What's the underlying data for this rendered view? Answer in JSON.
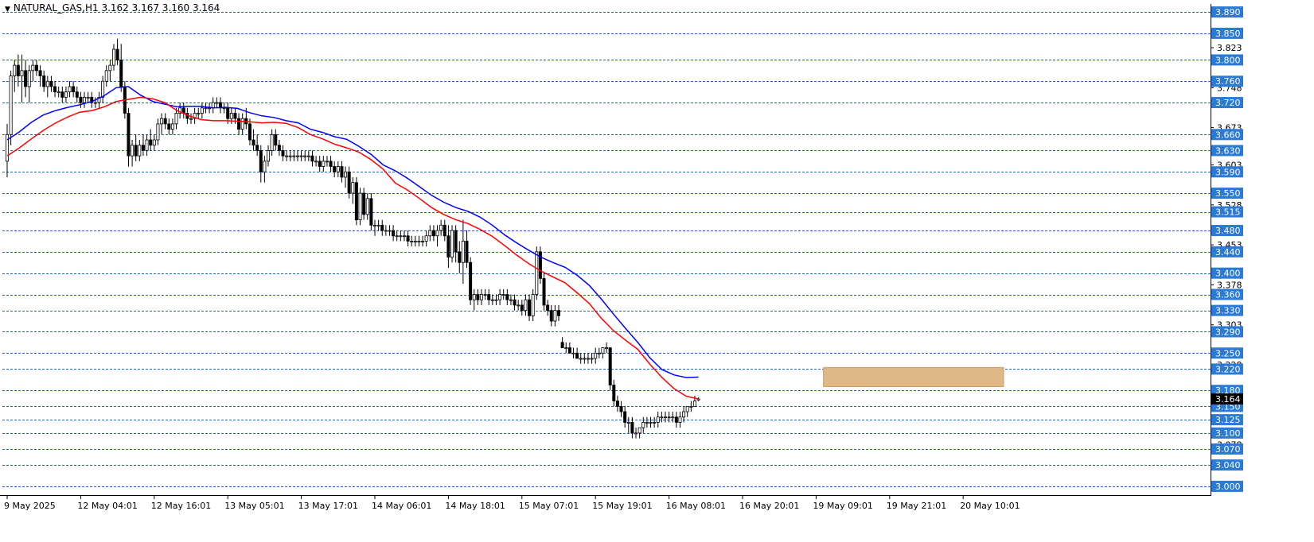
{
  "window": {
    "title": "NATURAL_GAS,H1  3.162 3.167 3.160 3.164"
  },
  "colors": {
    "background": "#ffffff",
    "candle_up": "#ffffff",
    "candle_down": "#000000",
    "ema_fast": "#ff0000",
    "ema_slow": "#0000ff",
    "grid": "#2060c0",
    "level_label_bg": "#2a7ad6",
    "zone": "#deb887"
  },
  "chart_data": {
    "type": "candlestick",
    "symbol": "NATURAL_GAS",
    "timeframe": "H1",
    "ohlc_header": {
      "open": 3.162,
      "high": 3.167,
      "low": 3.16,
      "close": 3.164
    },
    "ylim": [
      2.985,
      3.905
    ],
    "price_scale_labels": [
      "3.823",
      "3.748",
      "3.673",
      "3.603",
      "3.528",
      "3.453",
      "3.378",
      "3.303",
      "3.228",
      "3.078",
      "3.003"
    ],
    "levels": [
      3.89,
      3.85,
      3.8,
      3.76,
      3.72,
      3.66,
      3.63,
      3.59,
      3.55,
      3.515,
      3.48,
      3.44,
      3.4,
      3.36,
      3.33,
      3.29,
      3.25,
      3.22,
      3.18,
      3.15,
      3.125,
      3.1,
      3.07,
      3.04,
      3.0
    ],
    "level_labels": [
      "3.890",
      "3.850",
      "3.800",
      "3.760",
      "3.720",
      "3.660",
      "3.630",
      "3.590",
      "3.550",
      "3.515",
      "3.480",
      "3.440",
      "3.400",
      "3.360",
      "3.330",
      "3.290",
      "3.250",
      "3.220",
      "3.180",
      "3.150",
      "3.125",
      "3.100",
      "3.070",
      "3.040",
      "3.000"
    ],
    "current_price_label": "3.164",
    "x_labels": [
      "9 May 2025",
      "12 May 04:01",
      "12 May 16:01",
      "13 May 05:01",
      "13 May 17:01",
      "14 May 06:01",
      "14 May 18:01",
      "15 May 07:01",
      "15 May 19:01",
      "16 May 08:01",
      "16 May 20:01",
      "19 May 09:01",
      "19 May 21:01",
      "20 May 10:01"
    ],
    "x_label_bars": [
      0,
      20,
      40,
      60,
      80,
      100,
      120,
      140,
      160,
      180,
      200,
      220,
      240,
      260
    ],
    "zone": {
      "bar_start": 222,
      "bar_end": 271,
      "price_low": 3.187,
      "price_high": 3.223
    },
    "ema_fast": [
      3.62,
      3.635,
      3.652,
      3.668,
      3.682,
      3.693,
      3.702,
      3.705,
      3.712,
      3.722,
      3.726,
      3.73,
      3.727,
      3.72,
      3.705,
      3.695,
      3.688,
      3.686,
      3.686,
      3.685,
      3.684,
      3.682,
      3.683,
      3.681,
      3.673,
      3.66,
      3.652,
      3.642,
      3.635,
      3.627,
      3.613,
      3.595,
      3.569,
      3.556,
      3.54,
      3.523,
      3.51,
      3.5,
      3.493,
      3.482,
      3.469,
      3.452,
      3.434,
      3.418,
      3.404,
      3.393,
      3.382,
      3.363,
      3.343,
      3.315,
      3.292,
      3.274,
      3.257,
      3.229,
      3.204,
      3.183,
      3.169,
      3.164
    ],
    "ema_slow": [
      3.65,
      3.665,
      3.683,
      3.697,
      3.705,
      3.711,
      3.716,
      3.722,
      3.733,
      3.748,
      3.75,
      3.734,
      3.722,
      3.717,
      3.712,
      3.713,
      3.713,
      3.71,
      3.711,
      3.709,
      3.701,
      3.695,
      3.692,
      3.686,
      3.682,
      3.67,
      3.664,
      3.656,
      3.651,
      3.638,
      3.623,
      3.603,
      3.592,
      3.578,
      3.562,
      3.546,
      3.533,
      3.523,
      3.516,
      3.505,
      3.49,
      3.472,
      3.457,
      3.443,
      3.43,
      3.42,
      3.411,
      3.396,
      3.377,
      3.351,
      3.323,
      3.296,
      3.27,
      3.241,
      3.219,
      3.209,
      3.204,
      3.205
    ],
    "candles": [
      [
        3.61,
        3.68,
        3.58,
        3.66
      ],
      [
        3.66,
        3.78,
        3.64,
        3.77
      ],
      [
        3.77,
        3.8,
        3.74,
        3.79
      ],
      [
        3.79,
        3.81,
        3.75,
        3.77
      ],
      [
        3.77,
        3.81,
        3.72,
        3.78
      ],
      [
        3.78,
        3.8,
        3.73,
        3.75
      ],
      [
        3.75,
        3.79,
        3.72,
        3.78
      ],
      [
        3.78,
        3.8,
        3.76,
        3.79
      ],
      [
        3.79,
        3.8,
        3.77,
        3.78
      ],
      [
        3.78,
        3.79,
        3.75,
        3.77
      ],
      [
        3.77,
        3.78,
        3.74,
        3.75
      ],
      [
        3.75,
        3.77,
        3.73,
        3.76
      ],
      [
        3.76,
        3.77,
        3.74,
        3.75
      ],
      [
        3.75,
        3.76,
        3.73,
        3.74
      ],
      [
        3.74,
        3.75,
        3.73,
        3.74
      ],
      [
        3.74,
        3.75,
        3.72,
        3.73
      ],
      [
        3.73,
        3.75,
        3.72,
        3.74
      ],
      [
        3.74,
        3.76,
        3.73,
        3.75
      ],
      [
        3.75,
        3.76,
        3.73,
        3.74
      ],
      [
        3.74,
        3.75,
        3.72,
        3.73
      ],
      [
        3.73,
        3.74,
        3.71,
        3.72
      ],
      [
        3.72,
        3.74,
        3.71,
        3.73
      ],
      [
        3.73,
        3.74,
        3.72,
        3.73
      ],
      [
        3.73,
        3.74,
        3.71,
        3.72
      ],
      [
        3.72,
        3.73,
        3.71,
        3.72
      ],
      [
        3.72,
        3.74,
        3.71,
        3.73
      ],
      [
        3.73,
        3.77,
        3.72,
        3.76
      ],
      [
        3.76,
        3.79,
        3.75,
        3.78
      ],
      [
        3.78,
        3.8,
        3.76,
        3.79
      ],
      [
        3.79,
        3.83,
        3.78,
        3.82
      ],
      [
        3.82,
        3.84,
        3.79,
        3.8
      ],
      [
        3.8,
        3.83,
        3.74,
        3.75
      ],
      [
        3.75,
        3.76,
        3.69,
        3.7
      ],
      [
        3.7,
        3.71,
        3.6,
        3.62
      ],
      [
        3.62,
        3.65,
        3.6,
        3.64
      ],
      [
        3.64,
        3.66,
        3.61,
        3.62
      ],
      [
        3.62,
        3.65,
        3.61,
        3.64
      ],
      [
        3.64,
        3.66,
        3.62,
        3.63
      ],
      [
        3.63,
        3.66,
        3.62,
        3.65
      ],
      [
        3.65,
        3.67,
        3.63,
        3.64
      ],
      [
        3.64,
        3.66,
        3.63,
        3.65
      ],
      [
        3.65,
        3.69,
        3.64,
        3.68
      ],
      [
        3.68,
        3.7,
        3.66,
        3.69
      ],
      [
        3.69,
        3.7,
        3.67,
        3.68
      ],
      [
        3.68,
        3.69,
        3.66,
        3.67
      ],
      [
        3.67,
        3.69,
        3.66,
        3.68
      ],
      [
        3.68,
        3.71,
        3.67,
        3.7
      ],
      [
        3.7,
        3.72,
        3.69,
        3.71
      ],
      [
        3.71,
        3.72,
        3.69,
        3.7
      ],
      [
        3.7,
        3.71,
        3.68,
        3.69
      ],
      [
        3.69,
        3.7,
        3.68,
        3.69
      ],
      [
        3.69,
        3.71,
        3.68,
        3.7
      ],
      [
        3.7,
        3.71,
        3.69,
        3.7
      ],
      [
        3.7,
        3.72,
        3.69,
        3.71
      ],
      [
        3.71,
        3.72,
        3.7,
        3.71
      ],
      [
        3.71,
        3.72,
        3.7,
        3.71
      ],
      [
        3.71,
        3.73,
        3.7,
        3.72
      ],
      [
        3.72,
        3.73,
        3.71,
        3.72
      ],
      [
        3.72,
        3.73,
        3.7,
        3.71
      ],
      [
        3.71,
        3.72,
        3.7,
        3.71
      ],
      [
        3.71,
        3.72,
        3.68,
        3.69
      ],
      [
        3.69,
        3.71,
        3.68,
        3.7
      ],
      [
        3.7,
        3.71,
        3.68,
        3.69
      ],
      [
        3.69,
        3.7,
        3.66,
        3.67
      ],
      [
        3.67,
        3.7,
        3.66,
        3.69
      ],
      [
        3.69,
        3.71,
        3.67,
        3.68
      ],
      [
        3.68,
        3.69,
        3.64,
        3.65
      ],
      [
        3.65,
        3.67,
        3.63,
        3.64
      ],
      [
        3.64,
        3.66,
        3.62,
        3.63
      ],
      [
        3.63,
        3.64,
        3.57,
        3.59
      ],
      [
        3.59,
        3.62,
        3.57,
        3.61
      ],
      [
        3.61,
        3.64,
        3.6,
        3.63
      ],
      [
        3.63,
        3.67,
        3.62,
        3.66
      ],
      [
        3.66,
        3.67,
        3.63,
        3.64
      ],
      [
        3.64,
        3.65,
        3.62,
        3.63
      ],
      [
        3.63,
        3.64,
        3.61,
        3.62
      ],
      [
        3.62,
        3.63,
        3.61,
        3.62
      ],
      [
        3.62,
        3.63,
        3.61,
        3.62
      ],
      [
        3.62,
        3.63,
        3.61,
        3.62
      ],
      [
        3.62,
        3.63,
        3.61,
        3.62
      ],
      [
        3.62,
        3.63,
        3.61,
        3.62
      ],
      [
        3.62,
        3.63,
        3.61,
        3.62
      ],
      [
        3.62,
        3.63,
        3.61,
        3.62
      ],
      [
        3.62,
        3.63,
        3.6,
        3.61
      ],
      [
        3.61,
        3.62,
        3.6,
        3.61
      ],
      [
        3.61,
        3.62,
        3.59,
        3.6
      ],
      [
        3.6,
        3.62,
        3.59,
        3.61
      ],
      [
        3.61,
        3.62,
        3.6,
        3.61
      ],
      [
        3.61,
        3.62,
        3.59,
        3.6
      ],
      [
        3.6,
        3.61,
        3.58,
        3.59
      ],
      [
        3.59,
        3.61,
        3.58,
        3.6
      ],
      [
        3.6,
        3.61,
        3.57,
        3.58
      ],
      [
        3.58,
        3.6,
        3.56,
        3.59
      ],
      [
        3.59,
        3.6,
        3.54,
        3.55
      ],
      [
        3.55,
        3.58,
        3.53,
        3.57
      ],
      [
        3.57,
        3.58,
        3.49,
        3.5
      ],
      [
        3.5,
        3.56,
        3.49,
        3.55
      ],
      [
        3.55,
        3.56,
        3.5,
        3.51
      ],
      [
        3.51,
        3.55,
        3.5,
        3.54
      ],
      [
        3.54,
        3.55,
        3.48,
        3.49
      ],
      [
        3.49,
        3.5,
        3.47,
        3.49
      ],
      [
        3.49,
        3.5,
        3.48,
        3.49
      ],
      [
        3.49,
        3.5,
        3.47,
        3.48
      ],
      [
        3.48,
        3.49,
        3.47,
        3.48
      ],
      [
        3.48,
        3.49,
        3.47,
        3.48
      ],
      [
        3.48,
        3.49,
        3.46,
        3.47
      ],
      [
        3.47,
        3.48,
        3.46,
        3.47
      ],
      [
        3.47,
        3.48,
        3.46,
        3.47
      ],
      [
        3.47,
        3.48,
        3.46,
        3.47
      ],
      [
        3.47,
        3.48,
        3.45,
        3.46
      ],
      [
        3.46,
        3.47,
        3.45,
        3.46
      ],
      [
        3.46,
        3.47,
        3.45,
        3.46
      ],
      [
        3.46,
        3.47,
        3.45,
        3.46
      ],
      [
        3.46,
        3.47,
        3.45,
        3.46
      ],
      [
        3.46,
        3.48,
        3.45,
        3.47
      ],
      [
        3.47,
        3.49,
        3.46,
        3.48
      ],
      [
        3.48,
        3.49,
        3.46,
        3.47
      ],
      [
        3.47,
        3.49,
        3.45,
        3.48
      ],
      [
        3.48,
        3.5,
        3.47,
        3.49
      ],
      [
        3.49,
        3.5,
        3.46,
        3.47
      ],
      [
        3.47,
        3.49,
        3.41,
        3.43
      ],
      [
        3.43,
        3.49,
        3.42,
        3.48
      ],
      [
        3.48,
        3.49,
        3.42,
        3.44
      ],
      [
        3.44,
        3.46,
        3.4,
        3.42
      ],
      [
        3.42,
        3.5,
        3.38,
        3.46
      ],
      [
        3.46,
        3.48,
        3.41,
        3.42
      ],
      [
        3.42,
        3.43,
        3.34,
        3.35
      ],
      [
        3.35,
        3.37,
        3.33,
        3.36
      ],
      [
        3.36,
        3.37,
        3.34,
        3.35
      ],
      [
        3.35,
        3.37,
        3.34,
        3.36
      ],
      [
        3.36,
        3.37,
        3.35,
        3.36
      ],
      [
        3.36,
        3.37,
        3.34,
        3.35
      ],
      [
        3.35,
        3.36,
        3.34,
        3.35
      ],
      [
        3.35,
        3.36,
        3.34,
        3.35
      ],
      [
        3.35,
        3.37,
        3.34,
        3.36
      ],
      [
        3.36,
        3.37,
        3.35,
        3.36
      ],
      [
        3.36,
        3.37,
        3.34,
        3.35
      ],
      [
        3.35,
        3.36,
        3.34,
        3.35
      ],
      [
        3.35,
        3.36,
        3.33,
        3.34
      ],
      [
        3.34,
        3.35,
        3.33,
        3.34
      ],
      [
        3.34,
        3.35,
        3.32,
        3.33
      ],
      [
        3.33,
        3.36,
        3.32,
        3.35
      ],
      [
        3.35,
        3.36,
        3.31,
        3.32
      ],
      [
        3.32,
        3.37,
        3.31,
        3.36
      ],
      [
        3.36,
        3.45,
        3.35,
        3.44
      ],
      [
        3.44,
        3.45,
        3.38,
        3.39
      ],
      [
        3.39,
        3.4,
        3.33,
        3.34
      ],
      [
        3.34,
        3.35,
        3.32,
        3.33
      ],
      [
        3.33,
        3.34,
        3.3,
        3.31
      ],
      [
        3.31,
        3.34,
        3.3,
        3.33
      ],
      [
        3.33,
        3.34,
        3.31,
        3.32
      ],
      [
        3.27,
        3.28,
        3.26,
        3.26
      ],
      [
        3.26,
        3.27,
        3.25,
        3.26
      ],
      [
        3.26,
        3.27,
        3.25,
        3.25
      ],
      [
        3.25,
        3.26,
        3.24,
        3.25
      ],
      [
        3.25,
        3.26,
        3.24,
        3.24
      ],
      [
        3.24,
        3.25,
        3.23,
        3.24
      ],
      [
        3.24,
        3.25,
        3.23,
        3.24
      ],
      [
        3.24,
        3.25,
        3.23,
        3.24
      ],
      [
        3.24,
        3.25,
        3.23,
        3.24
      ],
      [
        3.24,
        3.26,
        3.23,
        3.25
      ],
      [
        3.25,
        3.26,
        3.24,
        3.25
      ],
      [
        3.25,
        3.26,
        3.24,
        3.26
      ],
      [
        3.26,
        3.27,
        3.25,
        3.26
      ],
      [
        3.26,
        3.26,
        3.18,
        3.19
      ],
      [
        3.19,
        3.2,
        3.15,
        3.16
      ],
      [
        3.16,
        3.17,
        3.14,
        3.15
      ],
      [
        3.15,
        3.16,
        3.13,
        3.14
      ],
      [
        3.14,
        3.15,
        3.11,
        3.12
      ],
      [
        3.12,
        3.13,
        3.1,
        3.12
      ],
      [
        3.12,
        3.13,
        3.09,
        3.1
      ],
      [
        3.1,
        3.11,
        3.09,
        3.1
      ],
      [
        3.1,
        3.11,
        3.09,
        3.11
      ],
      [
        3.11,
        3.13,
        3.1,
        3.12
      ],
      [
        3.12,
        3.13,
        3.11,
        3.12
      ],
      [
        3.12,
        3.13,
        3.11,
        3.12
      ],
      [
        3.12,
        3.13,
        3.11,
        3.12
      ],
      [
        3.12,
        3.14,
        3.11,
        3.13
      ],
      [
        3.13,
        3.14,
        3.12,
        3.13
      ],
      [
        3.13,
        3.14,
        3.12,
        3.13
      ],
      [
        3.13,
        3.14,
        3.12,
        3.13
      ],
      [
        3.13,
        3.14,
        3.12,
        3.13
      ],
      [
        3.13,
        3.14,
        3.11,
        3.12
      ],
      [
        3.12,
        3.14,
        3.11,
        3.13
      ],
      [
        3.13,
        3.15,
        3.12,
        3.14
      ],
      [
        3.14,
        3.15,
        3.13,
        3.15
      ],
      [
        3.15,
        3.16,
        3.14,
        3.15
      ],
      [
        3.15,
        3.17,
        3.15,
        3.16
      ],
      [
        3.162,
        3.167,
        3.16,
        3.164
      ]
    ]
  }
}
